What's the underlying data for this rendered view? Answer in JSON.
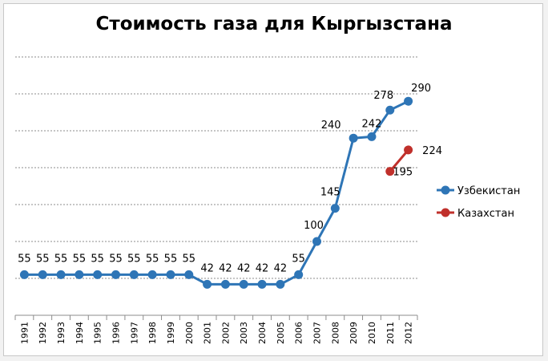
{
  "chart_data": {
    "type": "line",
    "title": "Стоимость газа для Кыргызстана",
    "categories": [
      "1991",
      "1992",
      "1993",
      "1994",
      "1995",
      "1996",
      "1997",
      "1998",
      "1999",
      "2000",
      "2001",
      "2002",
      "2003",
      "2004",
      "2005",
      "2006",
      "2007",
      "2008",
      "2009",
      "2010",
      "2011",
      "2012"
    ],
    "series": [
      {
        "name": "Узбекистан",
        "color": "#2e75b6",
        "values": [
          55,
          55,
          55,
          55,
          55,
          55,
          55,
          55,
          55,
          55,
          42,
          42,
          42,
          42,
          42,
          55,
          100,
          145,
          240,
          242,
          278,
          290
        ],
        "labels": [
          "55",
          "55",
          "55",
          "55",
          "55",
          "55",
          "55",
          "55",
          "55",
          "55",
          "42",
          "42",
          "42",
          "42",
          "42",
          "55",
          "100",
          "145",
          "240",
          "242",
          "278",
          "290"
        ]
      },
      {
        "name": "Казахстан",
        "color": "#c0302b",
        "values": [
          null,
          null,
          null,
          null,
          null,
          null,
          null,
          null,
          null,
          null,
          null,
          null,
          null,
          null,
          null,
          null,
          null,
          null,
          null,
          null,
          195,
          224
        ],
        "labels": [
          null,
          null,
          null,
          null,
          null,
          null,
          null,
          null,
          null,
          null,
          null,
          null,
          null,
          null,
          null,
          null,
          null,
          null,
          null,
          null,
          "195",
          "224"
        ]
      }
    ],
    "ylim": [
      0,
      350
    ],
    "grid": true,
    "legend": "right"
  }
}
